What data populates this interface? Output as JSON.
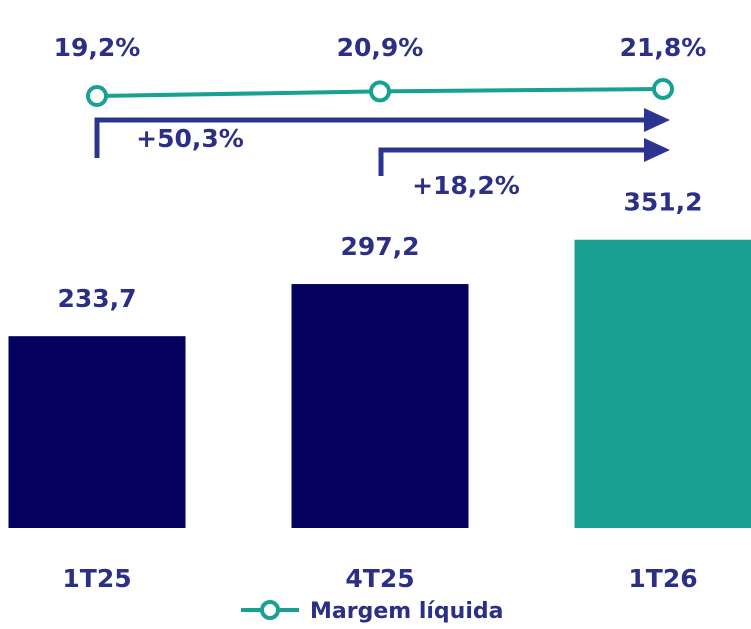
{
  "chart_data": {
    "type": "bar",
    "categories": [
      "1T25",
      "4T25",
      "1T26"
    ],
    "values": [
      233.7,
      297.2,
      351.2
    ],
    "value_labels": [
      "233,7",
      "297,2",
      "351,2"
    ],
    "bar_colors": [
      "#04005e",
      "#04005e",
      "#18a093"
    ],
    "line_series": {
      "name": "Margem líquida",
      "values": [
        19.2,
        20.9,
        21.8
      ],
      "labels": [
        "19,2%",
        "20,9%",
        "21,8%"
      ],
      "color": "#18a093"
    },
    "growth_arrows": [
      {
        "from": "1T25",
        "to": "1T26",
        "label": "+50,3%"
      },
      {
        "from": "4T25",
        "to": "1T26",
        "label": "+18,2%"
      }
    ],
    "colors": {
      "text": "#2b2f86",
      "arrow": "#2b3590"
    },
    "legend": {
      "position": "bottom-center",
      "label": "Margem líquida"
    },
    "grid": false
  }
}
